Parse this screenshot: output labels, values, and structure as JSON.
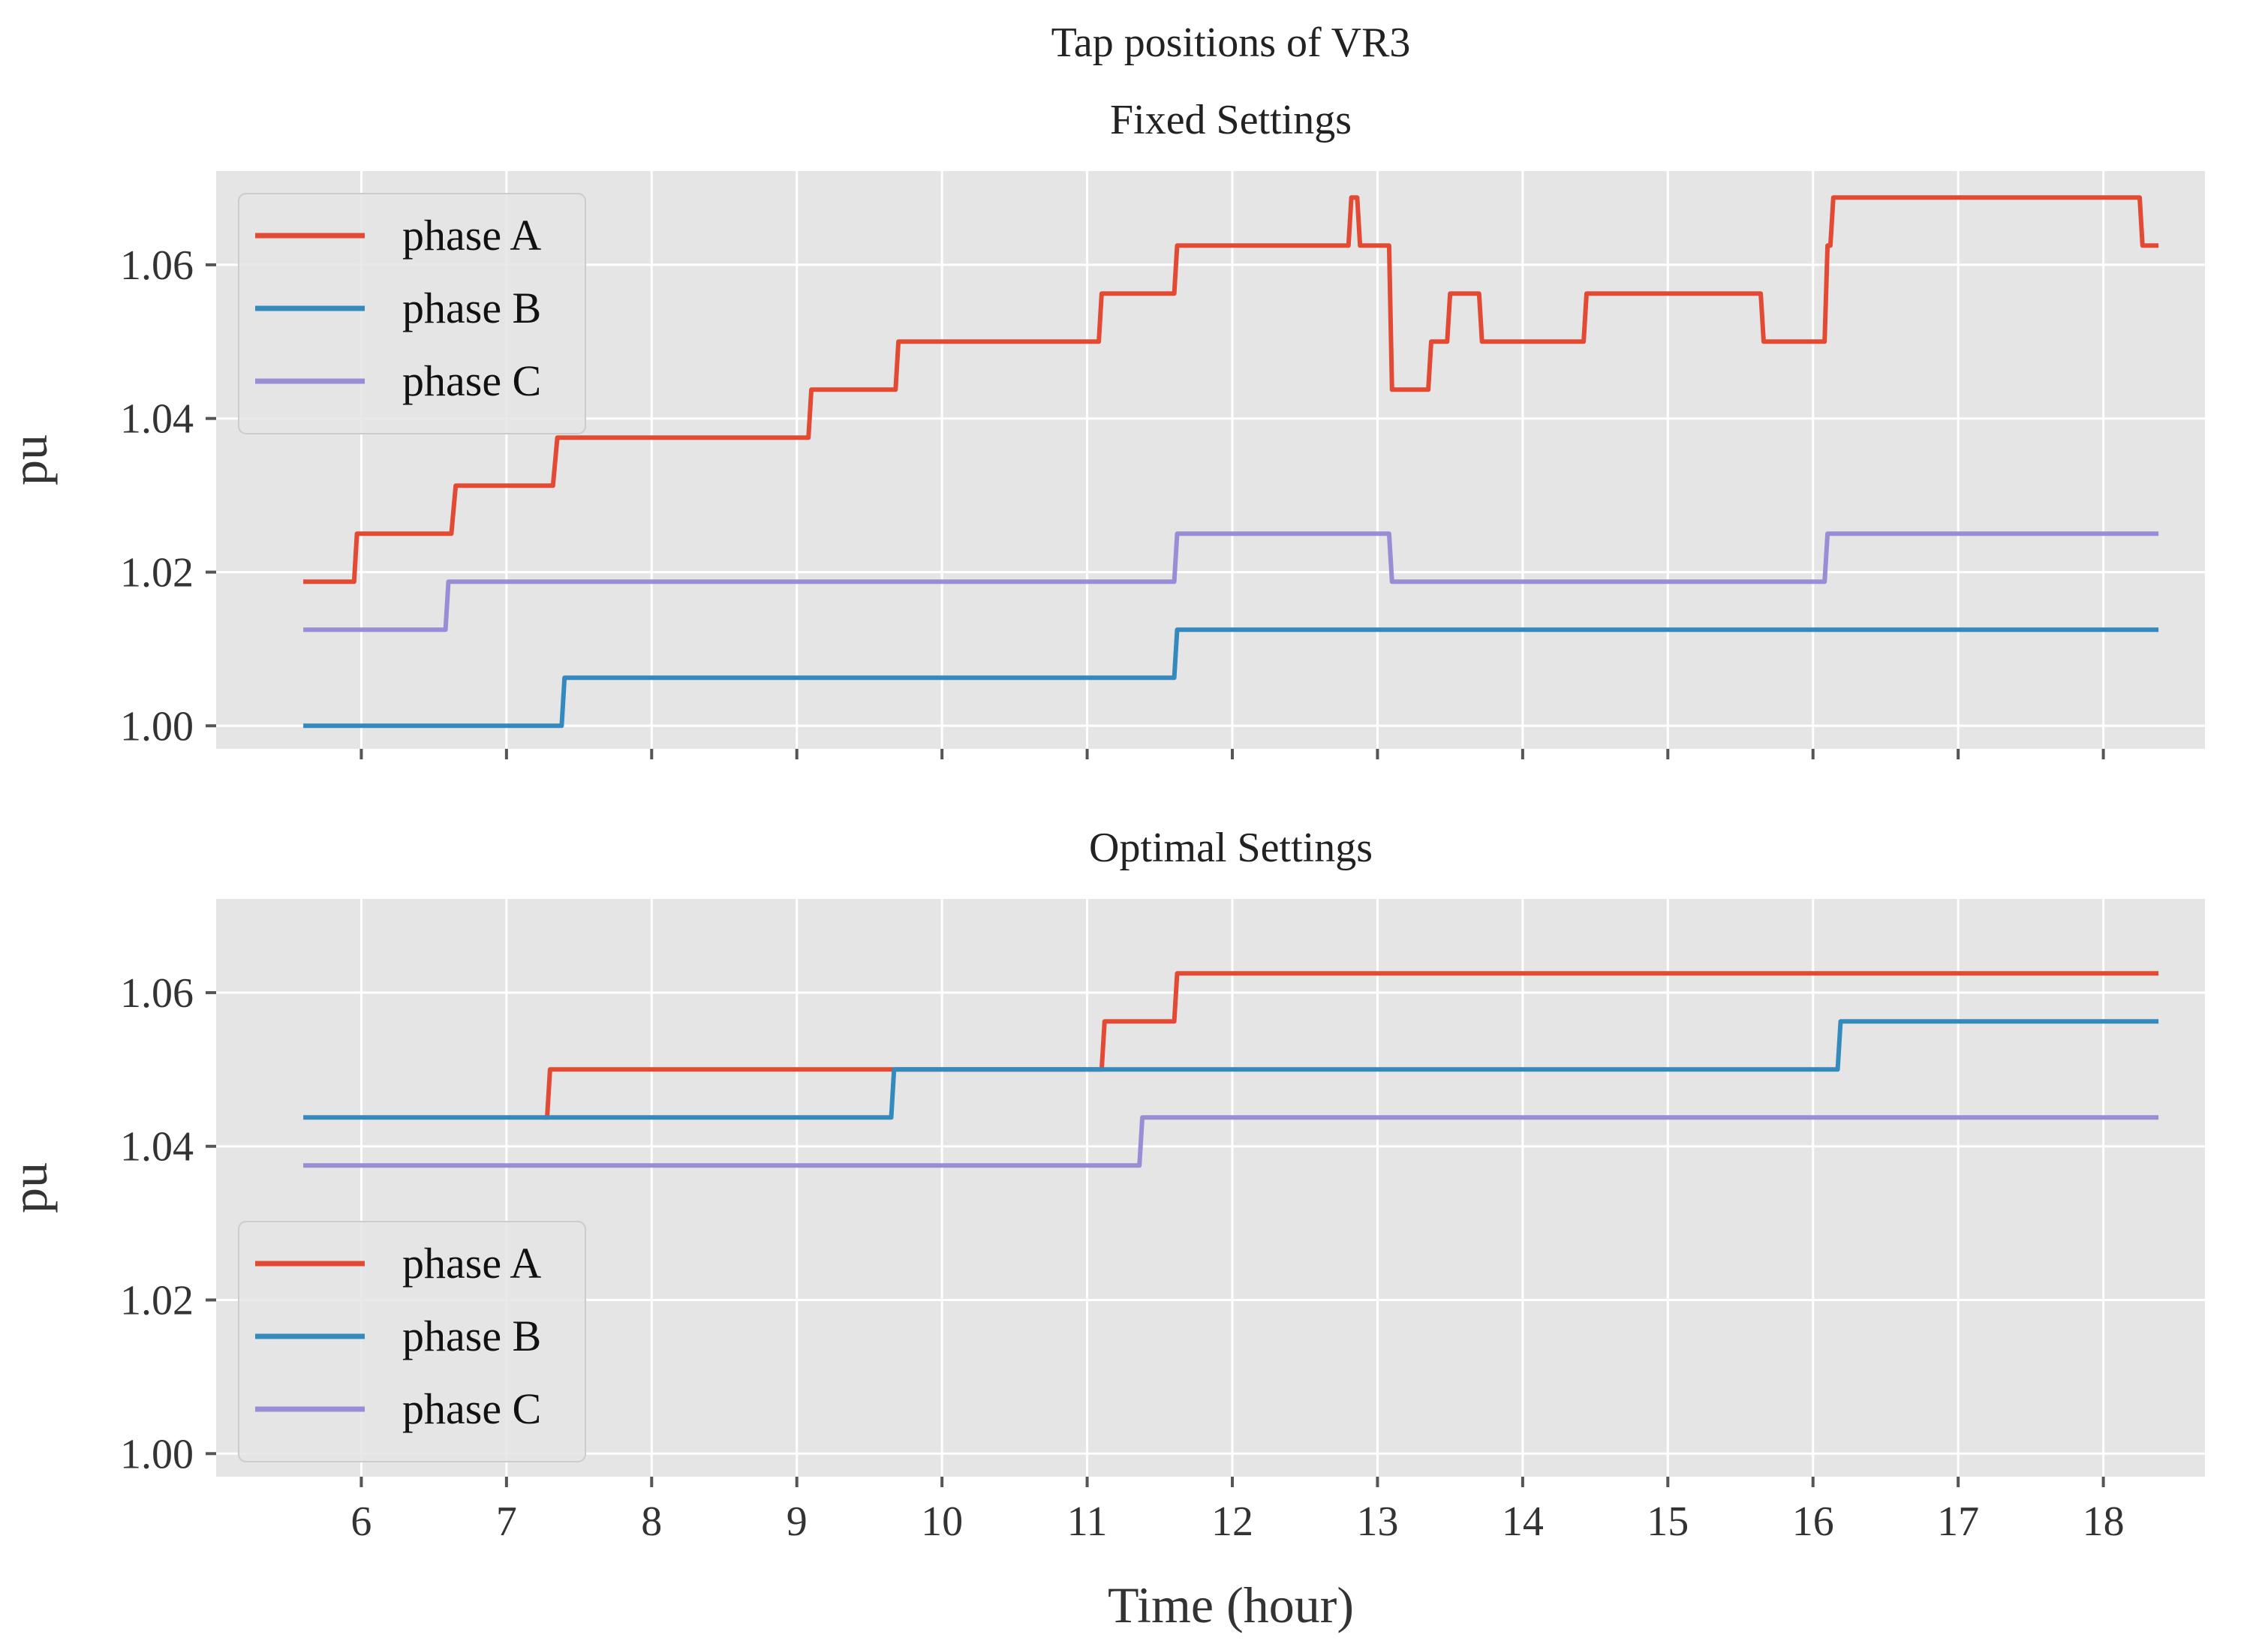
{
  "figure": {
    "title": "Tap positions of VR3",
    "xlabel": "Time (hour)"
  },
  "chart_data": [
    {
      "type": "line",
      "title": "Fixed Settings",
      "xlabel": "",
      "ylabel": "pu",
      "xlim": [
        5.0,
        18.7
      ],
      "ylim": [
        0.997,
        1.0722
      ],
      "x_ticks": [
        6,
        7,
        8,
        9,
        10,
        11,
        12,
        13,
        14,
        15,
        16,
        17,
        18
      ],
      "x_tick_labels_visible": false,
      "y_ticks": [
        1.0,
        1.02,
        1.04,
        1.06
      ],
      "y_tick_labels": [
        "1.00",
        "1.02",
        "1.04",
        "1.06"
      ],
      "grid": true,
      "legend": "top-left",
      "series": [
        {
          "name": "phase A",
          "color": "#e24a33",
          "x": [
            5.6,
            5.95,
            5.97,
            6.62,
            6.65,
            7.32,
            7.35,
            9.08,
            9.1,
            9.68,
            9.7,
            11.08,
            11.1,
            11.6,
            11.62,
            12.8,
            12.82,
            12.86,
            12.88,
            13.08,
            13.1,
            13.35,
            13.37,
            13.48,
            13.5,
            13.7,
            13.72,
            14.42,
            14.44,
            15.64,
            15.66,
            16.08,
            16.1,
            16.12,
            16.14,
            18.25,
            18.27,
            18.38
          ],
          "y": [
            1.01875,
            1.01875,
            1.025,
            1.025,
            1.03125,
            1.03125,
            1.0375,
            1.0375,
            1.04375,
            1.04375,
            1.05,
            1.05,
            1.05625,
            1.05625,
            1.0625,
            1.0625,
            1.06875,
            1.06875,
            1.0625,
            1.0625,
            1.04375,
            1.04375,
            1.05,
            1.05,
            1.05625,
            1.05625,
            1.05,
            1.05,
            1.05625,
            1.05625,
            1.05,
            1.05,
            1.0625,
            1.0625,
            1.06875,
            1.06875,
            1.0625,
            1.0625
          ]
        },
        {
          "name": "phase B",
          "color": "#348abd",
          "x": [
            5.6,
            7.38,
            7.4,
            11.6,
            11.62,
            18.38
          ],
          "y": [
            1.0,
            1.0,
            1.00625,
            1.00625,
            1.0125,
            1.0125
          ]
        },
        {
          "name": "phase C",
          "color": "#988ed5",
          "x": [
            5.6,
            6.58,
            6.6,
            11.6,
            11.62,
            13.08,
            13.1,
            16.08,
            16.1,
            18.38
          ],
          "y": [
            1.0125,
            1.0125,
            1.01875,
            1.01875,
            1.025,
            1.025,
            1.01875,
            1.01875,
            1.025,
            1.025
          ]
        }
      ]
    },
    {
      "type": "line",
      "title": "Optimal Settings",
      "xlabel": "Time (hour)",
      "ylabel": "pu",
      "xlim": [
        5.0,
        18.7
      ],
      "ylim": [
        0.997,
        1.0722
      ],
      "x_ticks": [
        6,
        7,
        8,
        9,
        10,
        11,
        12,
        13,
        14,
        15,
        16,
        17,
        18
      ],
      "x_tick_labels": [
        "6",
        "7",
        "8",
        "9",
        "10",
        "11",
        "12",
        "13",
        "14",
        "15",
        "16",
        "17",
        "18"
      ],
      "x_tick_labels_visible": true,
      "y_ticks": [
        1.0,
        1.02,
        1.04,
        1.06
      ],
      "y_tick_labels": [
        "1.00",
        "1.02",
        "1.04",
        "1.06"
      ],
      "grid": true,
      "legend": "bottom-left",
      "series": [
        {
          "name": "phase A",
          "color": "#e24a33",
          "x": [
            7.26,
            7.28,
            7.3,
            11.1,
            11.12,
            11.6,
            11.62,
            18.38
          ],
          "y": [
            1.04375,
            1.04375,
            1.05,
            1.05,
            1.05625,
            1.05625,
            1.0625,
            1.0625
          ]
        },
        {
          "name": "phase B",
          "color": "#348abd",
          "x": [
            5.6,
            9.65,
            9.67,
            16.17,
            16.19,
            18.38
          ],
          "y": [
            1.04375,
            1.04375,
            1.05,
            1.05,
            1.05625,
            1.05625
          ]
        },
        {
          "name": "phase C",
          "color": "#988ed5",
          "x": [
            5.6,
            11.36,
            11.38,
            18.38
          ],
          "y": [
            1.0375,
            1.0375,
            1.04375,
            1.04375
          ]
        }
      ]
    }
  ]
}
